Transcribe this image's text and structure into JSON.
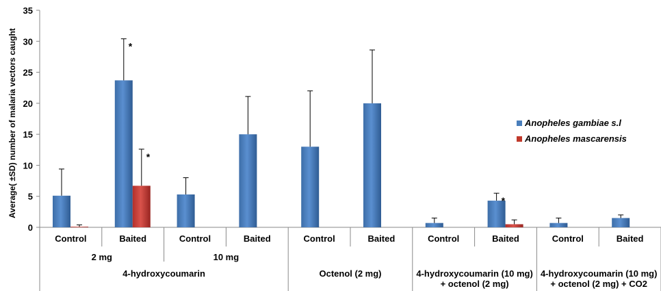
{
  "chart_data": {
    "type": "bar",
    "ylabel": "Average( ±SD)  number of malaria vectors caught",
    "ylim": [
      0,
      35
    ],
    "yticks": [
      0,
      5,
      10,
      15,
      20,
      25,
      30,
      35
    ],
    "grid": false,
    "legend_position": "right",
    "categories": [
      "Control",
      "Baited",
      "Control",
      "Baited",
      "Control",
      "Baited",
      "Control",
      "Baited",
      "Control",
      "Baited"
    ],
    "groups_level2": [
      {
        "label": "2 mg",
        "span": [
          0,
          1
        ]
      },
      {
        "label": "10 mg",
        "span": [
          2,
          3
        ]
      },
      {
        "label": "",
        "span": [
          4,
          5
        ]
      },
      {
        "label": "",
        "span": [
          6,
          7
        ]
      },
      {
        "label": "",
        "span": [
          8,
          9
        ]
      }
    ],
    "groups_level3": [
      {
        "label": "4-hydroxycoumarin",
        "span": [
          0,
          3
        ],
        "lines": [
          "4-hydroxycoumarin"
        ]
      },
      {
        "label": "Octenol (2 mg)",
        "span": [
          4,
          5
        ],
        "lines": [
          "Octenol (2 mg)"
        ]
      },
      {
        "label": "4-hydroxycoumarin (10 mg) + octenol (2 mg)",
        "span": [
          6,
          7
        ],
        "lines": [
          "4-hydroxycoumarin (10 mg)",
          "+ octenol (2 mg)"
        ]
      },
      {
        "label": "4-hydroxycoumarin (10 mg) + octenol (2 mg) + CO2",
        "span": [
          8,
          9
        ],
        "lines": [
          "4-hydroxycoumarin (10 mg)",
          "+ octenol (2 mg) + CO2"
        ]
      }
    ],
    "series": [
      {
        "name": "Anopheles gambiae s.l",
        "color": "#4a7ebb",
        "values": [
          5.1,
          23.7,
          5.3,
          15.0,
          13.0,
          20.0,
          0.7,
          4.3,
          0.7,
          1.5
        ],
        "sd": [
          4.3,
          6.7,
          2.7,
          6.1,
          9.0,
          8.6,
          0.8,
          1.2,
          0.8,
          0.5
        ],
        "significant": [
          false,
          true,
          false,
          false,
          false,
          false,
          false,
          true,
          false,
          false
        ]
      },
      {
        "name": "Anopheles mascarensis",
        "color": "#c0392b",
        "values": [
          0.1,
          6.7,
          0,
          0,
          0,
          0,
          0,
          0.5,
          0,
          0
        ],
        "sd": [
          0.3,
          5.9,
          0,
          0,
          0,
          0,
          0,
          0.7,
          0,
          0
        ],
        "significant": [
          false,
          true,
          false,
          false,
          false,
          false,
          false,
          false,
          false,
          false
        ]
      }
    ],
    "annotation_symbol": "*"
  }
}
